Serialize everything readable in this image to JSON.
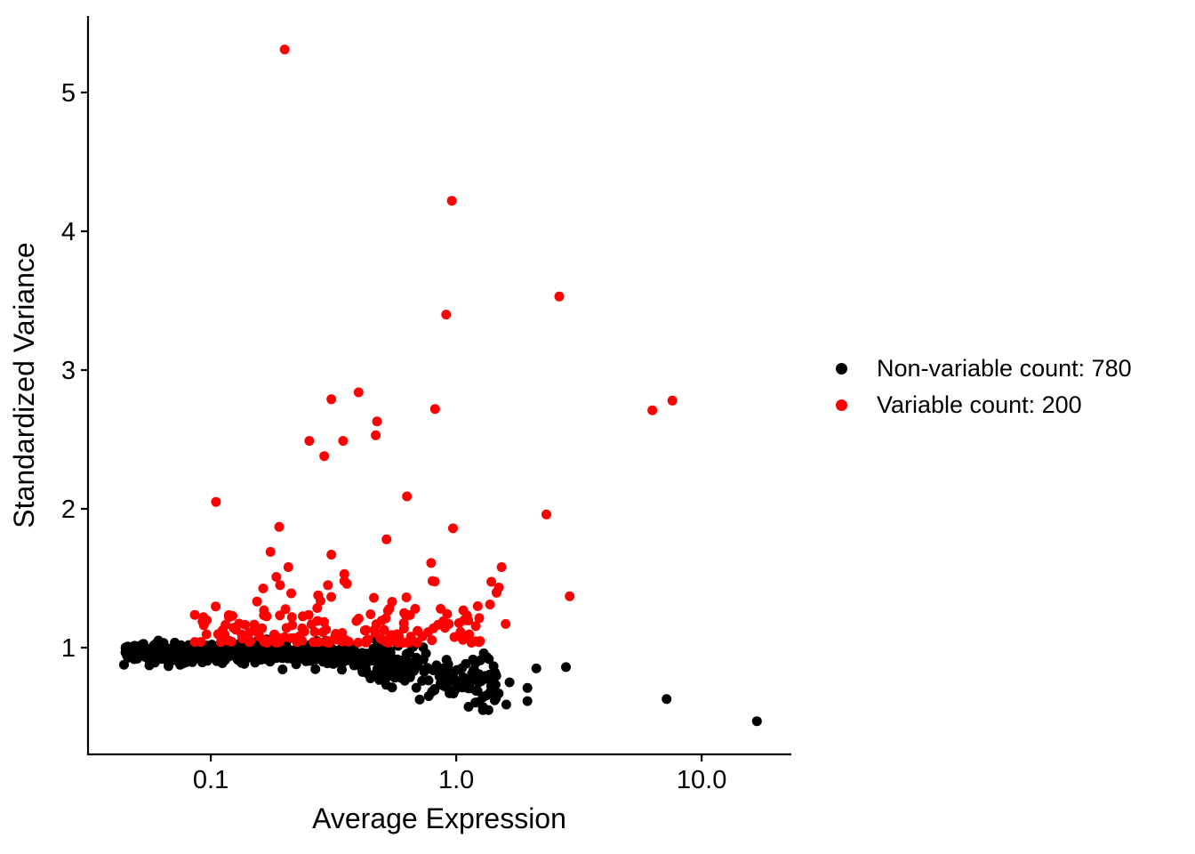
{
  "figure": {
    "background": "#FFFFFF",
    "axis_color": "#000000"
  },
  "chart_data": {
    "type": "scatter",
    "title": "",
    "xlabel": "Average Expression",
    "ylabel": "Standardized Variance",
    "x_scale": "log10",
    "x_range": [
      0.0316,
      23.2
    ],
    "y_range": [
      0.231,
      5.551
    ],
    "x_ticks": {
      "values": [
        0.1,
        1.0,
        10.0
      ],
      "labels": [
        "0.1",
        "1.0",
        "10.0"
      ]
    },
    "y_ticks": {
      "values": [
        1,
        2,
        3,
        4,
        5
      ],
      "labels": [
        "1",
        "2",
        "3",
        "4",
        "5"
      ]
    },
    "grid": false,
    "point_radius": 5.5,
    "legend": {
      "position": "right-middle",
      "entries": [
        {
          "label": "Non-variable count: 780",
          "color": "#000000"
        },
        {
          "label": "Variable count: 200",
          "color": "#FF0000"
        }
      ]
    },
    "series": [
      {
        "name": "Non-variable",
        "color": "#000000",
        "count": 780,
        "outlier_points": [
          [
            1.49,
            0.67
          ],
          [
            1.6,
            0.59
          ],
          [
            1.65,
            0.75
          ],
          [
            1.95,
            0.71
          ],
          [
            1.95,
            0.615
          ],
          [
            2.12,
            0.85
          ],
          [
            2.8,
            0.86
          ],
          [
            7.2,
            0.63
          ],
          [
            16.8,
            0.47
          ]
        ],
        "cloud": {
          "count": 771,
          "seed": 101,
          "log10x_min": -1.36,
          "main_span": 1.16,
          "tail_frac": 0.16,
          "tail_span": 0.37,
          "mu_flat": 0.965,
          "sigma_flat": 0.036,
          "droop_start": -0.55,
          "droop_rate": 0.3,
          "sigma_rate": 0.1,
          "y_min": 0.55,
          "y_max": 1.06
        }
      },
      {
        "name": "Variable",
        "color": "#FF0000",
        "count": 200,
        "outlier_points": [
          [
            0.2,
            5.31
          ],
          [
            0.96,
            4.22
          ],
          [
            2.63,
            3.53
          ],
          [
            0.91,
            3.4
          ],
          [
            0.4,
            2.84
          ],
          [
            0.31,
            2.79
          ],
          [
            7.6,
            2.78
          ],
          [
            0.82,
            2.72
          ],
          [
            6.3,
            2.71
          ],
          [
            0.476,
            2.63
          ],
          [
            0.47,
            2.53
          ],
          [
            0.252,
            2.49
          ],
          [
            0.346,
            2.49
          ],
          [
            0.29,
            2.38
          ],
          [
            0.63,
            2.09
          ],
          [
            0.105,
            2.05
          ],
          [
            2.33,
            1.96
          ],
          [
            0.19,
            1.87
          ],
          [
            0.97,
            1.86
          ],
          [
            0.52,
            1.78
          ],
          [
            0.175,
            1.69
          ],
          [
            0.31,
            1.67
          ],
          [
            0.79,
            1.61
          ],
          [
            0.207,
            1.58
          ],
          [
            1.53,
            1.58
          ],
          [
            0.35,
            1.53
          ],
          [
            0.185,
            1.51
          ],
          [
            0.8,
            1.48
          ],
          [
            0.35,
            1.48
          ],
          [
            0.3,
            1.45
          ],
          [
            2.9,
            1.37
          ]
        ],
        "fringe": {
          "count": 135,
          "seed": 202,
          "log10x_min": -1.08,
          "log10x_span": 1.18,
          "x_bias": 0.95,
          "y_base": 1.035,
          "y_span": 0.21,
          "y_pow": 2.2
        },
        "mid": {
          "count": 34,
          "seed": 303,
          "log10x_min": -1.0,
          "log10x_span": 1.25,
          "y_base": 1.16,
          "y_span": 0.32,
          "y_pow": 1.4
        }
      }
    ]
  }
}
